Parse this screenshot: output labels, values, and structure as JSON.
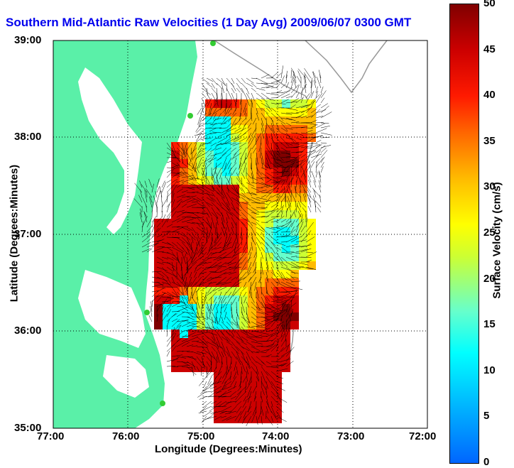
{
  "title": "Southern Mid-Atlantic Raw Velocities (1 Day Avg) 2009/06/07 0300 GMT",
  "axes": {
    "xlabel": "Longitude (Degrees:Minutes)",
    "ylabel": "Latitude (Degrees:Minutes)",
    "x_ticks": [
      "77:00",
      "76:00",
      "75:00",
      "74:00",
      "73:00",
      "72:00"
    ],
    "y_ticks": [
      "39:00",
      "38:00",
      "37:00",
      "36:00",
      "35:00"
    ]
  },
  "colorbar": {
    "label": "Surface Velocity (cm/s)",
    "ticks": [
      "0",
      "5",
      "10",
      "15",
      "20",
      "25",
      "30",
      "35",
      "40",
      "45",
      "50"
    ],
    "range": [
      0,
      50
    ]
  },
  "colors": {
    "land": "#5af0a8",
    "water": "#ffffff",
    "title": "#0000ee",
    "grid": "#000000",
    "bathymetry": "#999999",
    "station": "#33cc33"
  }
}
